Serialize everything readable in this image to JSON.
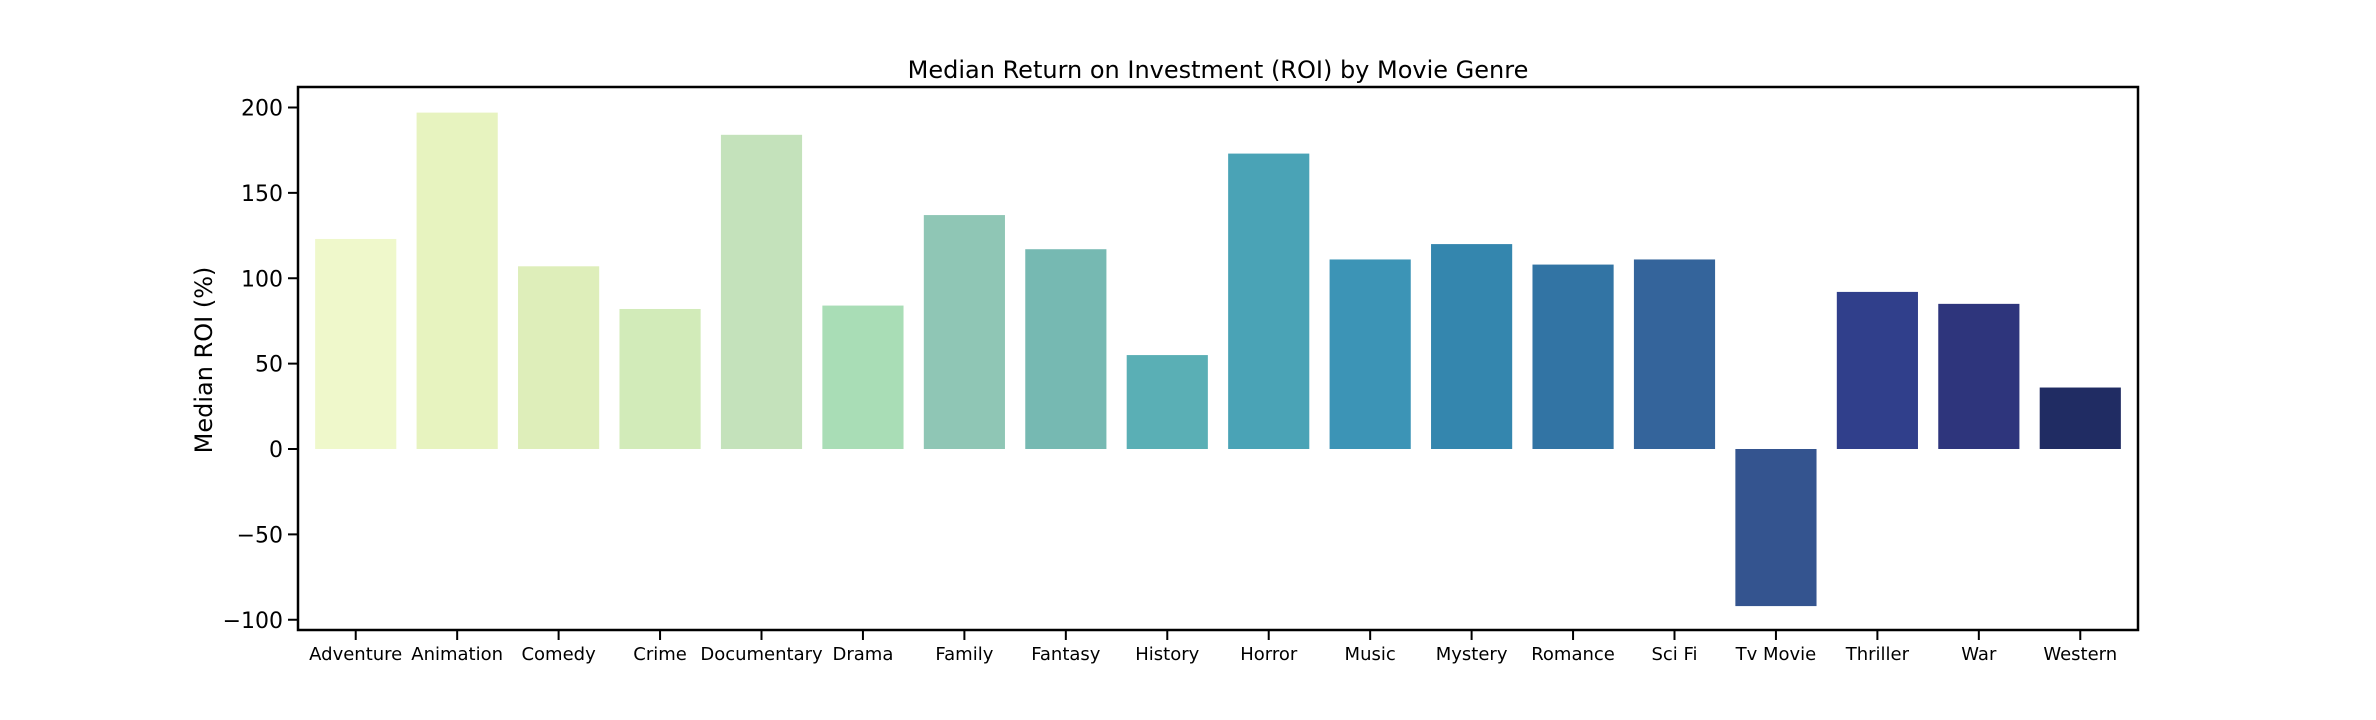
{
  "chart_data": {
    "type": "bar",
    "title": "Median Return on Investment (ROI) by Movie Genre",
    "xlabel": "",
    "ylabel": "Median ROI (%)",
    "ylim": [
      -106,
      212
    ],
    "yticks": [
      200,
      150,
      100,
      50,
      0,
      -50,
      -100
    ],
    "ytick_labels": [
      "200",
      "150",
      "100",
      "50",
      "0",
      "−50",
      "−100"
    ],
    "grid": false,
    "legend": "none",
    "categories": [
      "Adventure",
      "Animation",
      "Comedy",
      "Crime",
      "Documentary",
      "Drama",
      "Family",
      "Fantasy",
      "History",
      "Horror",
      "Music",
      "Mystery",
      "Romance",
      "Sci Fi",
      "Tv Movie",
      "Thriller",
      "War",
      "Western"
    ],
    "values": [
      123,
      197,
      107,
      82,
      184,
      84,
      137,
      117,
      55,
      173,
      111,
      120,
      108,
      111,
      -92,
      92,
      85,
      36
    ],
    "colors": [
      "#eff8cb",
      "#e7f3bf",
      "#deeeba",
      "#d2ebb9",
      "#c4e2bb",
      "#a9ddb6",
      "#8fc6b5",
      "#76b9b2",
      "#5aafb5",
      "#4aa3b6",
      "#3c94b6",
      "#3486ae",
      "#3274a4",
      "#34649b",
      "#34548f",
      "#303f8b",
      "#2e357c",
      "#202c63"
    ]
  }
}
